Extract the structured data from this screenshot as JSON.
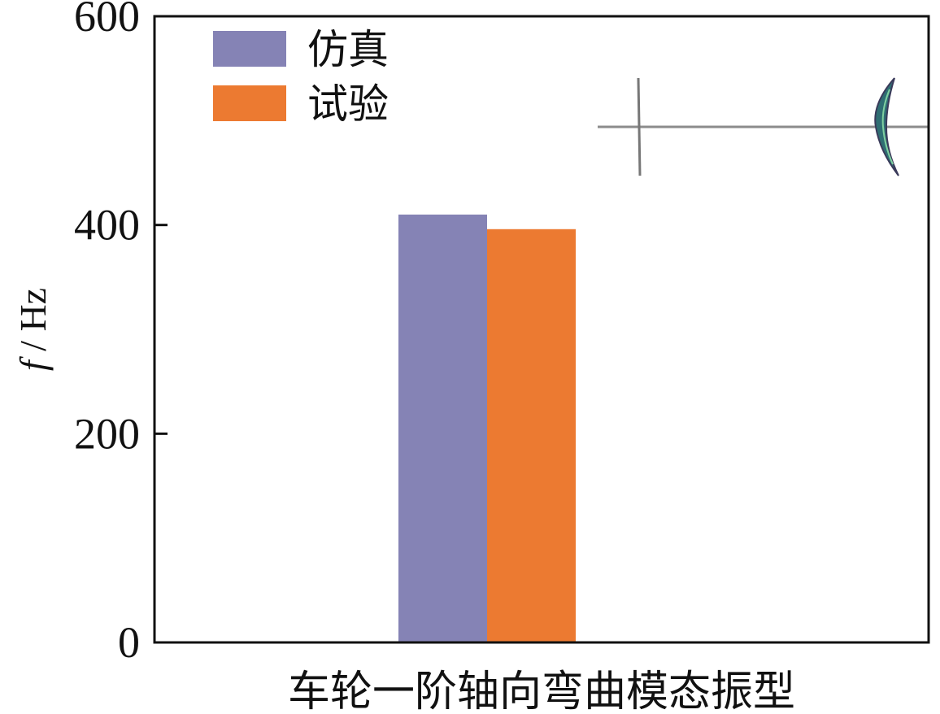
{
  "chart_data": {
    "type": "bar",
    "categories": [
      "车轮一阶轴向弯曲模态振型"
    ],
    "series": [
      {
        "name": "仿真",
        "values": [
          410
        ],
        "color": "#8583b5"
      },
      {
        "name": "试验",
        "values": [
          396
        ],
        "color": "#ec7a31"
      }
    ],
    "ylabel_italic": "f",
    "ylabel_rest": " / Hz",
    "ylim": [
      0,
      600
    ],
    "yticks": [
      "0",
      "200",
      "400",
      "600"
    ],
    "legend_position": "top-left",
    "grid": false,
    "inset": "mode-shape-illustration"
  }
}
